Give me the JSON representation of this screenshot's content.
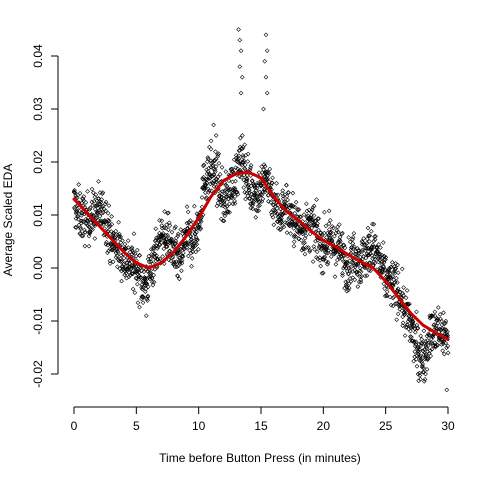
{
  "chart_data": {
    "type": "scatter",
    "title": "",
    "xlabel": "Time before Button Press (in minutes)",
    "ylabel": "Average Scaled EDA",
    "xlim": [
      0,
      30
    ],
    "ylim": [
      -0.022,
      0.045
    ],
    "xticks": [
      0,
      5,
      10,
      15,
      20,
      25,
      30
    ],
    "yticks": [
      -0.02,
      -0.01,
      0.0,
      0.01,
      0.02,
      0.03,
      0.04
    ],
    "xtick_labels": [
      "0",
      "5",
      "10",
      "15",
      "20",
      "25",
      "30"
    ],
    "ytick_labels": [
      "-0.02",
      "-0.01",
      "0.00",
      "0.01",
      "0.02",
      "0.03",
      "0.04"
    ],
    "grid": false,
    "legend": "none",
    "point_color": "#000000",
    "point_marker": "open-diamond",
    "smooth_color": "#cc0000",
    "series": [
      {
        "kind": "points",
        "trend": [
          [
            0.0,
            0.012
          ],
          [
            0.5,
            0.01
          ],
          [
            1.0,
            0.009
          ],
          [
            1.5,
            0.01
          ],
          [
            2.0,
            0.011
          ],
          [
            2.5,
            0.01
          ],
          [
            3.0,
            0.005
          ],
          [
            3.5,
            0.004
          ],
          [
            4.0,
            0.002
          ],
          [
            4.5,
            0.001
          ],
          [
            5.0,
            0.0
          ],
          [
            5.5,
            -0.003
          ],
          [
            6.0,
            -0.002
          ],
          [
            6.5,
            0.003
          ],
          [
            7.0,
            0.005
          ],
          [
            7.5,
            0.006
          ],
          [
            8.0,
            0.003
          ],
          [
            8.5,
            0.001
          ],
          [
            9.0,
            0.006
          ],
          [
            9.5,
            0.005
          ],
          [
            10.0,
            0.008
          ],
          [
            10.5,
            0.017
          ],
          [
            11.0,
            0.018
          ],
          [
            11.5,
            0.017
          ],
          [
            12.0,
            0.012
          ],
          [
            12.5,
            0.015
          ],
          [
            13.0,
            0.017
          ],
          [
            13.5,
            0.021
          ],
          [
            14.0,
            0.016
          ],
          [
            14.5,
            0.014
          ],
          [
            15.0,
            0.015
          ],
          [
            15.5,
            0.017
          ],
          [
            16.0,
            0.013
          ],
          [
            16.5,
            0.01
          ],
          [
            17.0,
            0.012
          ],
          [
            17.5,
            0.009
          ],
          [
            18.0,
            0.008
          ],
          [
            18.5,
            0.007
          ],
          [
            19.0,
            0.008
          ],
          [
            19.5,
            0.006
          ],
          [
            20.0,
            0.004
          ],
          [
            20.5,
            0.005
          ],
          [
            21.0,
            0.004
          ],
          [
            21.5,
            0.003
          ],
          [
            22.0,
            0.0
          ],
          [
            22.5,
            0.003
          ],
          [
            23.0,
            0.001
          ],
          [
            23.5,
            0.003
          ],
          [
            24.0,
            0.004
          ],
          [
            24.5,
            0.001
          ],
          [
            25.0,
            -0.002
          ],
          [
            25.5,
            -0.003
          ],
          [
            26.0,
            -0.004
          ],
          [
            26.5,
            -0.008
          ],
          [
            27.0,
            -0.011
          ],
          [
            27.5,
            -0.015
          ],
          [
            28.0,
            -0.017
          ],
          [
            28.5,
            -0.013
          ],
          [
            29.0,
            -0.012
          ],
          [
            29.5,
            -0.012
          ],
          [
            30.0,
            -0.013
          ]
        ],
        "outliers": [
          [
            13.2,
            0.045
          ],
          [
            13.3,
            0.043
          ],
          [
            13.4,
            0.041
          ],
          [
            13.3,
            0.038
          ],
          [
            13.5,
            0.036
          ],
          [
            13.4,
            0.033
          ],
          [
            15.4,
            0.044
          ],
          [
            15.5,
            0.041
          ],
          [
            15.3,
            0.039
          ],
          [
            15.4,
            0.036
          ],
          [
            15.5,
            0.033
          ],
          [
            15.2,
            0.03
          ],
          [
            11.2,
            0.027
          ],
          [
            11.4,
            0.025
          ],
          [
            11.0,
            0.024
          ],
          [
            27.8,
            -0.021
          ],
          [
            27.6,
            -0.02
          ],
          [
            29.9,
            -0.023
          ],
          [
            5.8,
            -0.009
          ],
          [
            28.2,
            -0.02
          ]
        ]
      },
      {
        "kind": "smooth",
        "x": [
          0,
          1,
          2,
          3,
          4,
          5,
          6,
          7,
          8,
          9,
          10,
          11,
          12,
          13,
          14,
          15,
          16,
          17,
          18,
          19,
          20,
          21,
          22,
          23,
          24,
          25,
          26,
          27,
          28,
          29,
          30
        ],
        "y": [
          0.013,
          0.0105,
          0.008,
          0.0055,
          0.003,
          0.001,
          0.0,
          0.001,
          0.003,
          0.006,
          0.0095,
          0.0135,
          0.0165,
          0.0178,
          0.0181,
          0.017,
          0.0135,
          0.0108,
          0.009,
          0.007,
          0.0052,
          0.004,
          0.0025,
          0.0012,
          0.0,
          -0.0025,
          -0.0055,
          -0.0085,
          -0.0108,
          -0.0122,
          -0.0135
        ]
      }
    ]
  }
}
